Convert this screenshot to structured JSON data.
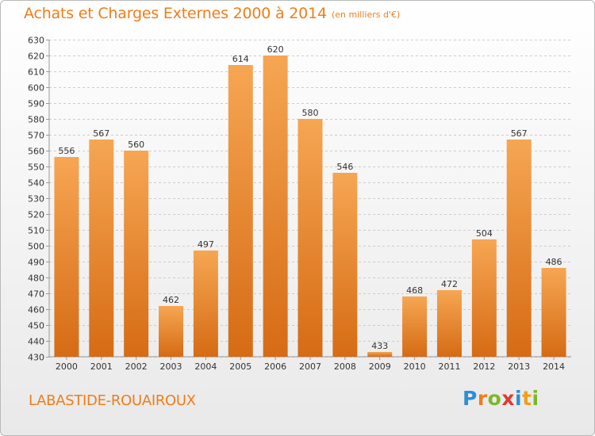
{
  "header": {
    "title": "Achats et Charges Externes 2000 à 2014",
    "subtitle": "(en milliers d'€)"
  },
  "footer": {
    "city": "LABASTIDE-ROUAIROUX",
    "logo_letters": [
      "P",
      "r",
      "o",
      "x",
      "i",
      "t",
      "i"
    ],
    "logo_colors": [
      "#2d8fd4",
      "#f07d1a",
      "#7cb72a",
      "#e03a2f",
      "#2d8fd4",
      "#f0a01a",
      "#7cb72a"
    ]
  },
  "colors": {
    "bar_light": "#f6a653",
    "bar_dark": "#d66b14",
    "grid": "#cccccc",
    "axis_text": "#333333"
  },
  "chart_data": {
    "type": "bar",
    "title": "Achats et Charges Externes 2000 à 2014",
    "subtitle": "(en milliers d'€)",
    "categories": [
      "2000",
      "2001",
      "2002",
      "2003",
      "2004",
      "2005",
      "2006",
      "2007",
      "2008",
      "2009",
      "2010",
      "2011",
      "2012",
      "2013",
      "2014"
    ],
    "values": [
      556,
      567,
      560,
      462,
      497,
      614,
      620,
      580,
      546,
      433,
      468,
      472,
      504,
      567,
      486
    ],
    "xlabel": "",
    "ylabel": "",
    "ylim": [
      430,
      630
    ],
    "yticks": [
      430,
      440,
      450,
      460,
      470,
      480,
      490,
      500,
      510,
      520,
      530,
      540,
      550,
      560,
      570,
      580,
      590,
      600,
      610,
      620,
      630
    ],
    "grid": true,
    "data_labels": true
  }
}
